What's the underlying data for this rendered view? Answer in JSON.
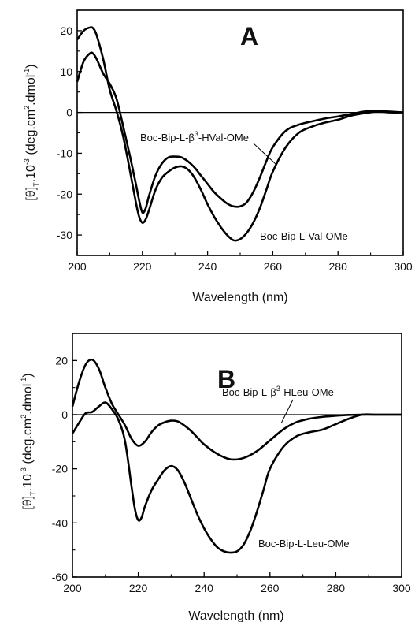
{
  "chart_data": [
    {
      "type": "line",
      "panel": "A",
      "xlabel": "Wavelength (nm)",
      "ylabel": {
        "main": "[θ]",
        "sub": "T",
        "mid": ".10",
        "sup": "-3",
        "units": "(deg.cm",
        "sup2": "2",
        "units2": ".dmol",
        "sup3": "-1",
        "close": ")"
      },
      "xlim": [
        200,
        300
      ],
      "ylim": [
        -35,
        25
      ],
      "xticks": [
        200,
        220,
        240,
        260,
        280,
        300
      ],
      "yticks": [
        20,
        10,
        0,
        -10,
        -20,
        -30
      ],
      "zero_line": true,
      "series": [
        {
          "name": "Boc-Bip-L-Val-OMe",
          "x": [
            200,
            202,
            204,
            205,
            206,
            208,
            210,
            212,
            214,
            216,
            218,
            219,
            220,
            221,
            222,
            224,
            226,
            228,
            230,
            232,
            234,
            236,
            238,
            240,
            242,
            244,
            246,
            248,
            250,
            252,
            254,
            256,
            258,
            260,
            264,
            268,
            272,
            276,
            280,
            284,
            288,
            292,
            296,
            300
          ],
          "y": [
            17.8,
            20.0,
            20.8,
            20.5,
            18.8,
            13.0,
            5.5,
            0.5,
            -5.5,
            -13.5,
            -22.0,
            -25.5,
            -27.0,
            -26.2,
            -24.0,
            -19.0,
            -16.0,
            -14.5,
            -13.5,
            -13.2,
            -14.0,
            -16.0,
            -19.0,
            -22.5,
            -25.5,
            -28.0,
            -30.0,
            -31.3,
            -31.0,
            -29.5,
            -27.0,
            -23.5,
            -19.0,
            -14.5,
            -8.5,
            -5.0,
            -3.5,
            -2.5,
            -1.8,
            -0.8,
            -0.2,
            0.2,
            0.0,
            0.0
          ]
        },
        {
          "name": "Boc-Bip-L-β3-HVal-OMe",
          "label_parts": {
            "pre": "Boc-Bip-L-β",
            "sup": "3",
            "post": "-HVal-OMe"
          },
          "x": [
            200,
            202,
            204,
            205,
            206,
            208,
            210,
            212,
            214,
            216,
            218,
            219,
            220,
            221,
            222,
            224,
            226,
            228,
            230,
            232,
            234,
            236,
            238,
            240,
            242,
            244,
            246,
            248,
            250,
            252,
            254,
            256,
            258,
            260,
            264,
            268,
            272,
            276,
            280,
            284,
            288,
            292,
            296,
            300
          ],
          "y": [
            7.5,
            12.5,
            14.5,
            14.3,
            13.0,
            9.5,
            7.0,
            3.5,
            -3.0,
            -10.0,
            -17.5,
            -21.5,
            -24.5,
            -23.5,
            -20.5,
            -15.5,
            -12.5,
            -11.0,
            -10.8,
            -11.0,
            -12.0,
            -13.5,
            -15.5,
            -17.5,
            -19.5,
            -21.0,
            -22.3,
            -23.0,
            -23.0,
            -22.0,
            -19.5,
            -16.0,
            -12.0,
            -8.5,
            -4.5,
            -3.0,
            -2.2,
            -1.5,
            -1.0,
            -0.4,
            0.2,
            0.4,
            0.2,
            0.0
          ]
        }
      ]
    },
    {
      "type": "line",
      "panel": "B",
      "xlabel": "Wavelength (nm)",
      "ylabel": {
        "main": "[θ]",
        "sub": "T",
        "mid": ".10",
        "sup": "-3",
        "units": "(deg.cm",
        "sup2": "2",
        "units2": ".dmol",
        "sup3": "-1",
        "close": ")"
      },
      "xlim": [
        200,
        300
      ],
      "ylim": [
        -60,
        30
      ],
      "xticks": [
        200,
        220,
        240,
        260,
        280,
        300
      ],
      "yticks": [
        20,
        0,
        -20,
        -40,
        -60
      ],
      "zero_line": true,
      "series": [
        {
          "name": "Boc-Bip-L-Leu-OMe",
          "x": [
            200,
            202,
            204,
            206,
            208,
            210,
            212,
            214,
            216,
            218,
            219,
            220,
            221,
            222,
            224,
            226,
            228,
            230,
            232,
            234,
            236,
            238,
            240,
            242,
            244,
            246,
            248,
            250,
            252,
            254,
            256,
            258,
            260,
            264,
            268,
            272,
            276,
            280,
            284,
            288,
            292,
            296,
            300
          ],
          "y": [
            -7.0,
            -3.0,
            0.5,
            1.0,
            3.0,
            4.5,
            2.0,
            -2.0,
            -10.0,
            -27.0,
            -35.0,
            -39.0,
            -38.0,
            -34.0,
            -28.0,
            -24.0,
            -20.5,
            -19.0,
            -20.5,
            -25.0,
            -31.0,
            -37.0,
            -42.0,
            -46.0,
            -49.0,
            -50.5,
            -51.0,
            -50.5,
            -48.0,
            -43.0,
            -36.0,
            -28.0,
            -20.0,
            -12.0,
            -8.0,
            -6.5,
            -5.5,
            -3.5,
            -1.5,
            0.0,
            0.0,
            0.0,
            0.0
          ]
        },
        {
          "name": "Boc-Bip-L-β3-HLeu-OMe",
          "label_parts": {
            "pre": "Boc-Bip-L-β",
            "sup": "3",
            "post": "-HLeu-OMe"
          },
          "x": [
            200,
            202,
            204,
            206,
            208,
            210,
            212,
            214,
            216,
            218,
            220,
            222,
            224,
            226,
            228,
            230,
            232,
            234,
            236,
            238,
            240,
            244,
            248,
            252,
            256,
            260,
            264,
            268,
            272,
            276,
            280,
            284,
            288,
            292,
            296,
            300
          ],
          "y": [
            3.0,
            12.0,
            18.5,
            20.3,
            17.0,
            10.0,
            4.0,
            0.0,
            -4.0,
            -9.0,
            -11.5,
            -10.0,
            -6.5,
            -4.0,
            -2.8,
            -2.2,
            -2.5,
            -4.0,
            -6.0,
            -8.5,
            -11.0,
            -14.5,
            -16.5,
            -16.0,
            -13.5,
            -9.5,
            -5.5,
            -2.8,
            -1.5,
            -0.8,
            -0.4,
            -0.1,
            0.0,
            0.0,
            0.0,
            0.0
          ]
        }
      ]
    }
  ]
}
